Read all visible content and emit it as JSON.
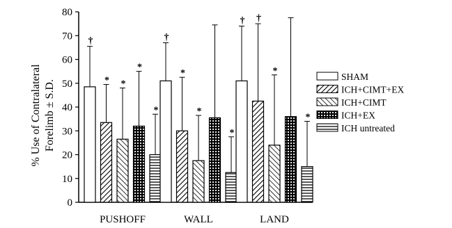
{
  "chart_data": {
    "type": "bar",
    "title": "",
    "xlabel": "",
    "ylabel": "% Use of Contralateral",
    "ylabel_line2": "Forelimb ± S.D.",
    "ylim": [
      0,
      80
    ],
    "yticks": [
      0,
      10,
      20,
      30,
      40,
      50,
      60,
      70,
      80
    ],
    "categories": [
      "PUSHOFF",
      "WALL",
      "LAND"
    ],
    "error_bars": "upper only (S.D.)",
    "legend_position": "right",
    "series": [
      {
        "name": "SHAM",
        "pattern": "white",
        "values": [
          48.5,
          51,
          51
        ],
        "err_top": [
          65.5,
          67,
          74
        ],
        "markers": [
          "†",
          "†",
          "†"
        ]
      },
      {
        "name": "ICH+CIMT+EX",
        "pattern": "diag-forward",
        "values": [
          33.5,
          30,
          42.5
        ],
        "err_top": [
          49.5,
          52.5,
          75
        ],
        "markers": [
          "*",
          "*",
          "†"
        ]
      },
      {
        "name": "ICH+CIMT",
        "pattern": "diag-back",
        "values": [
          26.5,
          17.5,
          24
        ],
        "err_top": [
          48,
          36.5,
          53.5
        ],
        "markers": [
          "*",
          "*",
          "*"
        ]
      },
      {
        "name": "ICH+EX",
        "pattern": "dots",
        "values": [
          32,
          35.5,
          36
        ],
        "err_top": [
          55,
          74.5,
          77.5
        ],
        "markers": [
          "*",
          "",
          ""
        ]
      },
      {
        "name": "ICH untreated",
        "pattern": "horizontal",
        "values": [
          20,
          12.5,
          15
        ],
        "err_top": [
          37,
          27.5,
          34
        ],
        "markers": [
          "*",
          "*",
          "*"
        ]
      }
    ]
  }
}
